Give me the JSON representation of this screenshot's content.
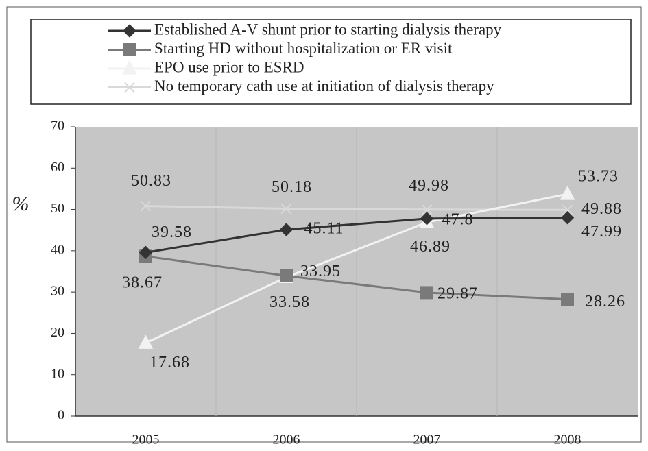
{
  "chart_data": {
    "type": "line",
    "categories": [
      "2005",
      "2006",
      "2007",
      "2008"
    ],
    "series": [
      {
        "name": "Established A-V shunt prior to starting dialysis therapy",
        "color": "#333333",
        "marker": "diamond",
        "values": [
          39.58,
          45.11,
          47.8,
          47.99
        ]
      },
      {
        "name": "Starting HD without hospitalization or ER visit",
        "color": "#7a7a7a",
        "marker": "square",
        "values": [
          38.67,
          33.95,
          29.87,
          28.26
        ]
      },
      {
        "name": "EPO use prior to ESRD",
        "color": "#f2f2f2",
        "marker": "triangle",
        "values": [
          17.68,
          33.58,
          46.89,
          53.73
        ]
      },
      {
        "name": "No temporary cath use at initiation of dialysis therapy",
        "color": "#d9d9d9",
        "marker": "x",
        "values": [
          50.83,
          50.18,
          49.98,
          49.88
        ]
      }
    ],
    "ylabel": "%",
    "ylim": [
      0,
      70
    ],
    "yticks": [
      0,
      10,
      20,
      30,
      40,
      50,
      60,
      70
    ]
  }
}
